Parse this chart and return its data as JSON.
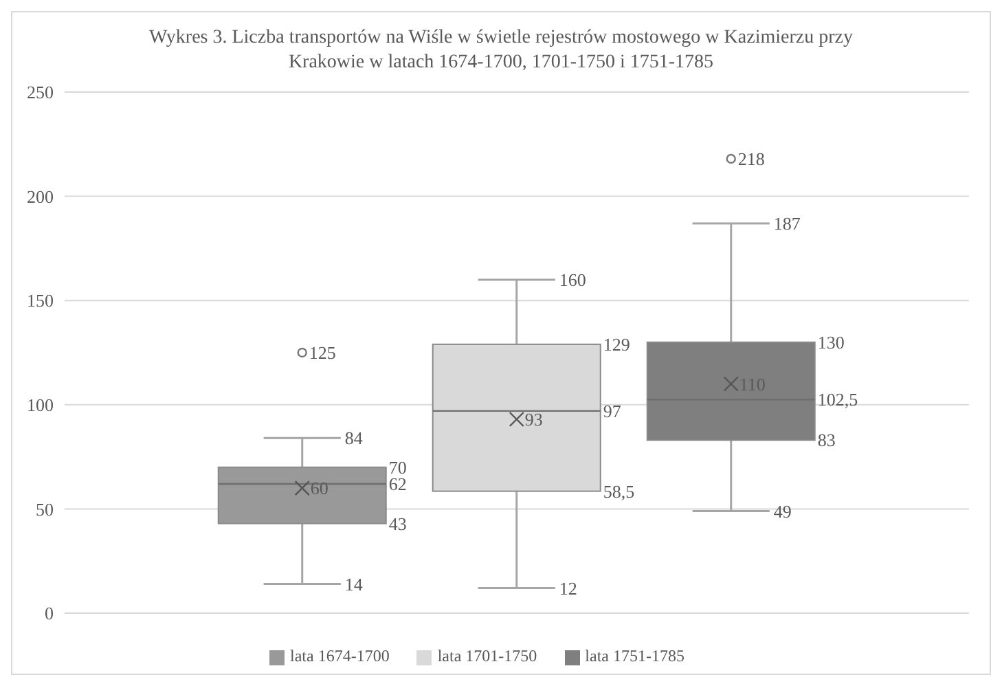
{
  "chart_data": {
    "type": "box",
    "title": "Wykres 3. Liczba transportów na Wiśle w świetle rejestrów mostowego w Kazimierzu przy Krakowie w latach 1674-1700, 1701-1750 i 1751-1785",
    "categories": [
      null
    ],
    "series": [
      {
        "name": "lata 1674-1700",
        "color": "#999999",
        "boxes": [
          {
            "low": 14,
            "q1": 43,
            "median": 62,
            "q3": 70,
            "high": 84,
            "mean": 60,
            "outliers": [
              125
            ]
          }
        ],
        "value_labels": [
          [
            "14",
            "43",
            "62",
            "70",
            "84",
            "60",
            "125"
          ]
        ]
      },
      {
        "name": "lata 1701-1750",
        "color": "#d9d9d9",
        "boxes": [
          {
            "low": 12,
            "q1": 58.5,
            "median": 97,
            "q3": 129,
            "high": 160,
            "mean": 93
          }
        ],
        "value_labels": [
          [
            "12",
            "58,5",
            "97",
            "129",
            "160",
            "93"
          ]
        ]
      },
      {
        "name": "lata 1751-1785",
        "color": "#7f7f7f",
        "boxes": [
          {
            "low": 49,
            "q1": 83,
            "median": 102.5,
            "q3": 130,
            "high": 187,
            "mean": 110,
            "outliers": [
              218
            ]
          }
        ],
        "value_labels": [
          [
            "49",
            "83",
            "102,5",
            "130",
            "187",
            "110",
            "218"
          ]
        ]
      }
    ],
    "ylim": [
      0,
      250
    ],
    "yticks": [
      0,
      50,
      100,
      150,
      200,
      250
    ],
    "grid": "y",
    "legend": "bottom"
  }
}
